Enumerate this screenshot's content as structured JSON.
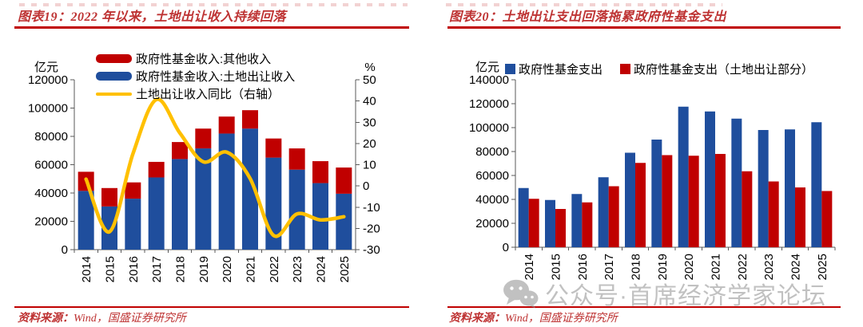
{
  "figures": [
    {
      "caption_label": "图表19：",
      "caption_text": "2022 年以来，土地出让收入持续回落",
      "source_label": "资料来源：",
      "source_text": "Wind，国盛证券研究所"
    },
    {
      "caption_label": "图表20：",
      "caption_text": "土地出让支出回落拖累政府性基金支出",
      "source_label": "资料来源：",
      "source_text": "Wind，国盛证券研究所"
    }
  ],
  "chart_data": [
    {
      "type": "bar",
      "subtype": "stacked-bars-with-line",
      "title": "2022 年以来，土地出让收入持续回落",
      "categories": [
        "2014",
        "2015",
        "2016",
        "2017",
        "2018",
        "2019",
        "2020",
        "2021",
        "2022",
        "2023",
        "2024",
        "2025"
      ],
      "series": [
        {
          "name": "政府性基金收入:其他收入",
          "type": "bar",
          "stack": "top",
          "color": "#c00000",
          "values": [
            13500,
            13000,
            11500,
            11000,
            12000,
            14000,
            12000,
            13000,
            13500,
            15000,
            15500,
            18500
          ]
        },
        {
          "name": "政府性基金收入:土地出让收入",
          "type": "bar",
          "stack": "bottom",
          "color": "#1f4e9d",
          "values": [
            41500,
            30500,
            36000,
            51000,
            64000,
            71500,
            82000,
            85500,
            65000,
            56500,
            47000,
            39500
          ]
        },
        {
          "name": "土地出让收入同比（右轴）",
          "type": "line",
          "axis": "right",
          "color": "#ffc000",
          "values": [
            3.2,
            -21.6,
            15.1,
            40.7,
            25.0,
            11.4,
            15.9,
            3.5,
            -23.3,
            -13.2,
            -16.0,
            -14.5
          ]
        }
      ],
      "y_left": {
        "unit": "亿元",
        "min": 0,
        "max": 120000,
        "step": 20000
      },
      "y_right": {
        "unit": "%",
        "min": -30,
        "max": 50,
        "step": 10
      },
      "grid": false,
      "legend_position": "top-left-vertical"
    },
    {
      "type": "bar",
      "subtype": "grouped-bars",
      "title": "土地出让支出回落拖累政府性基金支出",
      "categories": [
        "2014",
        "2015",
        "2016",
        "2017",
        "2018",
        "2019",
        "2020",
        "2021",
        "2022",
        "2023",
        "2024",
        "2025"
      ],
      "series": [
        {
          "name": "政府性基金支出",
          "type": "bar",
          "color": "#1f4e9d",
          "values": [
            49500,
            39500,
            44500,
            58500,
            79000,
            90000,
            117500,
            113500,
            107500,
            98000,
            98500,
            104500
          ]
        },
        {
          "name": "政府性基金支出（土地出让部分）",
          "type": "bar",
          "color": "#c00000",
          "values": [
            40500,
            32000,
            37500,
            51000,
            70500,
            77000,
            76500,
            78000,
            63500,
            55000,
            50000,
            47000
          ]
        }
      ],
      "y_left": {
        "unit": "亿元",
        "min": 0,
        "max": 140000,
        "step": 20000
      },
      "grid": false,
      "legend_position": "top-horizontal"
    }
  ],
  "watermark": {
    "icon": "wechat-icon",
    "text": "公众号·首席经济学家论坛"
  },
  "colors": {
    "bar_blue": "#1f4e9d",
    "bar_red": "#c00000",
    "line_yellow": "#ffc000",
    "rule_red": "#c00000",
    "caption_red": "#be3333",
    "axis_gray": "#595959"
  }
}
